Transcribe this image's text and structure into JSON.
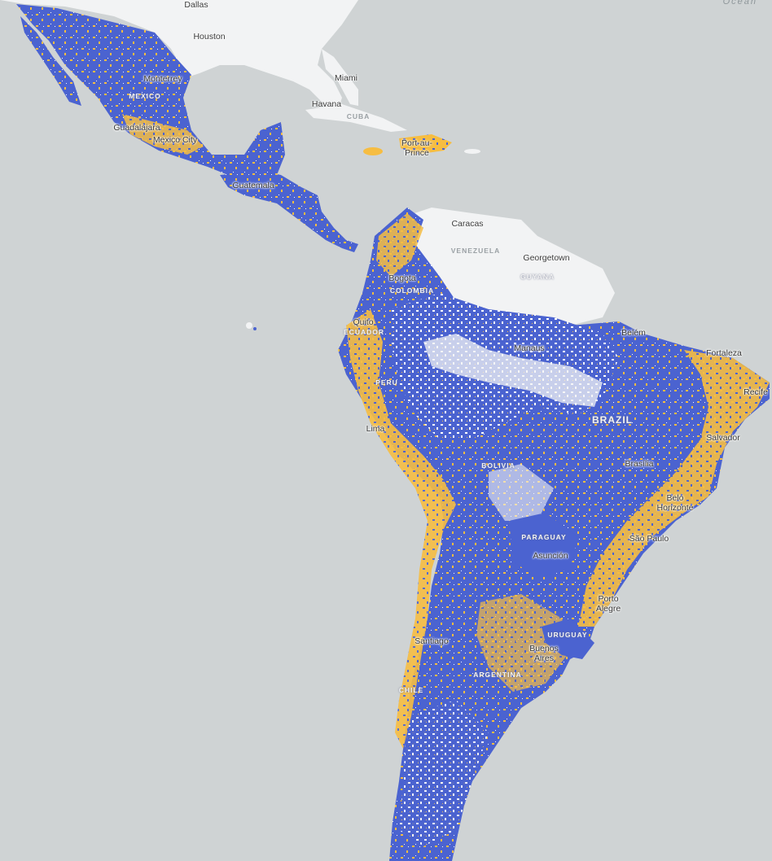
{
  "colors": {
    "water": "#cfd3d4",
    "land_plain": "#f2f3f4",
    "coverage_blue": "#4b63d0",
    "coverage_yellow": "#f6bd42"
  },
  "ocean_label": "Ocean",
  "cities": [
    {
      "id": "dallas",
      "name": "Dallas"
    },
    {
      "id": "houston",
      "name": "Houston"
    },
    {
      "id": "monterrey",
      "name": "Monterrey"
    },
    {
      "id": "miami",
      "name": "Miami"
    },
    {
      "id": "havana",
      "name": "Havana"
    },
    {
      "id": "guadalajara",
      "name": "Guadalajara"
    },
    {
      "id": "mexico-city",
      "name": "Mexico City"
    },
    {
      "id": "port-au-prince",
      "name": "Port-au-\nPrince"
    },
    {
      "id": "guatemala",
      "name": "Guatemala"
    },
    {
      "id": "caracas",
      "name": "Caracas"
    },
    {
      "id": "georgetown",
      "name": "Georgetown"
    },
    {
      "id": "bogota",
      "name": "Bogota"
    },
    {
      "id": "quito",
      "name": "Quito"
    },
    {
      "id": "manaus",
      "name": "Manaus"
    },
    {
      "id": "belem",
      "name": "Belém"
    },
    {
      "id": "fortaleza",
      "name": "Fortaleza"
    },
    {
      "id": "recife",
      "name": "Recife"
    },
    {
      "id": "lima",
      "name": "Lima"
    },
    {
      "id": "salvador",
      "name": "Salvador"
    },
    {
      "id": "brasilia",
      "name": "Brasília"
    },
    {
      "id": "belo-horizonte",
      "name": "Belo\nHorizonte"
    },
    {
      "id": "sao-paulo",
      "name": "São Paulo"
    },
    {
      "id": "asuncion",
      "name": "Asunción"
    },
    {
      "id": "porto-alegre",
      "name": "Porto\nAlegre"
    },
    {
      "id": "santiago",
      "name": "Santiago"
    },
    {
      "id": "buenos-aires",
      "name": "Buenos\nAires"
    }
  ],
  "countries": [
    {
      "id": "mexico",
      "name": "MEXICO"
    },
    {
      "id": "cuba",
      "name": "CUBA"
    },
    {
      "id": "venezuela",
      "name": "VENEZUELA"
    },
    {
      "id": "colombia",
      "name": "COLOMBIA"
    },
    {
      "id": "guyana",
      "name": "GUYANA"
    },
    {
      "id": "ecuador",
      "name": "ECUADOR"
    },
    {
      "id": "peru",
      "name": "PERU"
    },
    {
      "id": "brazil",
      "name": "BRAZIL"
    },
    {
      "id": "bolivia",
      "name": "BOLIVIA"
    },
    {
      "id": "paraguay",
      "name": "PARAGUAY"
    },
    {
      "id": "uruguay",
      "name": "URUGUAY"
    },
    {
      "id": "argentina",
      "name": "ARGENTINA"
    },
    {
      "id": "chile",
      "name": "CHILE"
    }
  ]
}
